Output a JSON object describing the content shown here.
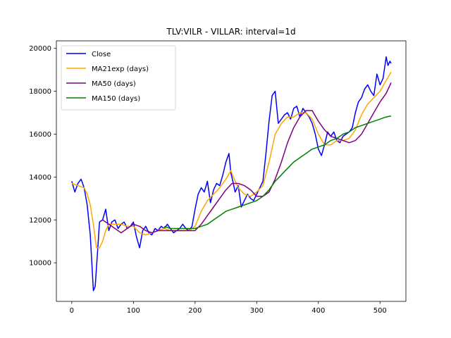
{
  "chart_data": {
    "type": "line",
    "title": "TLV:VILR - VILLAR: interval=1d",
    "xlabel": "",
    "ylabel": "",
    "xlim": [
      -25,
      542
    ],
    "ylim": [
      8200,
      20350
    ],
    "xticks": [
      0,
      100,
      200,
      300,
      400,
      500
    ],
    "yticks": [
      10000,
      12000,
      14000,
      16000,
      18000,
      20000
    ],
    "grid": false,
    "legend_position": "top-left",
    "series": [
      {
        "name": "Close",
        "color": "#0000ff",
        "x": [
          0,
          5,
          10,
          15,
          20,
          25,
          30,
          35,
          38,
          42,
          45,
          50,
          55,
          60,
          65,
          70,
          75,
          80,
          85,
          90,
          95,
          100,
          105,
          110,
          115,
          120,
          125,
          130,
          135,
          140,
          145,
          150,
          155,
          160,
          165,
          170,
          175,
          180,
          185,
          190,
          195,
          200,
          205,
          210,
          215,
          220,
          225,
          230,
          235,
          240,
          245,
          250,
          255,
          258,
          262,
          265,
          270,
          275,
          280,
          285,
          290,
          295,
          300,
          305,
          310,
          315,
          320,
          325,
          330,
          335,
          340,
          345,
          350,
          355,
          360,
          365,
          370,
          375,
          380,
          385,
          390,
          395,
          400,
          405,
          410,
          415,
          420,
          425,
          430,
          435,
          440,
          445,
          450,
          455,
          460,
          465,
          470,
          475,
          480,
          485,
          490,
          495,
          500,
          505,
          510,
          513,
          516,
          518
        ],
        "values": [
          13800,
          13300,
          13700,
          13900,
          13500,
          12700,
          11300,
          8700,
          8900,
          10600,
          11900,
          12000,
          12500,
          11500,
          11900,
          12000,
          11600,
          11800,
          11900,
          11600,
          11700,
          11900,
          11200,
          10700,
          11500,
          11700,
          11400,
          11300,
          11600,
          11500,
          11700,
          11600,
          11800,
          11600,
          11400,
          11500,
          11600,
          11800,
          11600,
          11500,
          11700,
          12500,
          13200,
          13500,
          13300,
          13800,
          12800,
          13400,
          13700,
          13600,
          14100,
          14700,
          15100,
          14200,
          13700,
          13300,
          13600,
          12600,
          12900,
          13200,
          13000,
          12900,
          13200,
          13500,
          13800,
          15100,
          16600,
          17800,
          18000,
          16500,
          16700,
          16900,
          17000,
          16700,
          17200,
          17300,
          16800,
          17200,
          17000,
          16800,
          16500,
          16000,
          15300,
          15000,
          15500,
          16100,
          15900,
          16100,
          15700,
          15600,
          15900,
          16000,
          16100,
          16300,
          17000,
          17500,
          17700,
          18100,
          18300,
          18000,
          17800,
          18800,
          18300,
          18600,
          19600,
          19200,
          19400,
          19300
        ]
      },
      {
        "name": "MA21exp (days)",
        "color": "#ffa500",
        "x": [
          0,
          10,
          20,
          25,
          30,
          35,
          40,
          45,
          50,
          55,
          60,
          70,
          80,
          90,
          100,
          110,
          120,
          130,
          140,
          150,
          160,
          170,
          180,
          190,
          200,
          210,
          220,
          230,
          240,
          250,
          258,
          262,
          270,
          280,
          290,
          300,
          310,
          320,
          330,
          340,
          350,
          360,
          370,
          380,
          390,
          400,
          410,
          420,
          430,
          440,
          450,
          460,
          470,
          480,
          490,
          500,
          510,
          518
        ],
        "values": [
          13700,
          13600,
          13500,
          13200,
          12700,
          11800,
          10700,
          10700,
          11000,
          11500,
          11800,
          11800,
          11800,
          11700,
          11700,
          11400,
          11300,
          11400,
          11500,
          11600,
          11500,
          11500,
          11500,
          11500,
          11700,
          12400,
          12900,
          13200,
          13500,
          13900,
          14300,
          14000,
          13500,
          13200,
          13100,
          13300,
          13600,
          14700,
          16000,
          16500,
          16800,
          16800,
          17000,
          17000,
          16700,
          16000,
          15500,
          15500,
          15700,
          15700,
          15800,
          16200,
          16900,
          17400,
          17700,
          18000,
          18500,
          18900
        ]
      },
      {
        "name": "MA50 (days)",
        "color": "#800080",
        "x": [
          50,
          60,
          70,
          80,
          90,
          100,
          110,
          120,
          130,
          140,
          150,
          160,
          170,
          180,
          190,
          200,
          210,
          220,
          230,
          240,
          250,
          260,
          270,
          280,
          290,
          300,
          310,
          320,
          330,
          340,
          350,
          360,
          370,
          380,
          390,
          400,
          410,
          420,
          430,
          440,
          450,
          460,
          470,
          480,
          490,
          500,
          510,
          518
        ],
        "values": [
          12000,
          11800,
          11600,
          11400,
          11600,
          11800,
          11700,
          11500,
          11400,
          11500,
          11500,
          11500,
          11500,
          11500,
          11500,
          11500,
          11800,
          12200,
          12600,
          13000,
          13400,
          13700,
          13700,
          13600,
          13400,
          13100,
          13100,
          13300,
          13900,
          14700,
          15600,
          16300,
          16800,
          17100,
          17100,
          16600,
          16200,
          15900,
          15800,
          15700,
          15600,
          15700,
          16000,
          16500,
          17000,
          17500,
          17900,
          18400
        ]
      },
      {
        "name": "MA150 (days)",
        "color": "#008000",
        "x": [
          150,
          160,
          170,
          180,
          190,
          200,
          210,
          220,
          230,
          240,
          250,
          260,
          270,
          280,
          290,
          300,
          310,
          320,
          330,
          340,
          350,
          360,
          370,
          380,
          390,
          400,
          410,
          420,
          430,
          440,
          450,
          460,
          470,
          480,
          490,
          500,
          510,
          518
        ],
        "values": [
          11700,
          11600,
          11600,
          11600,
          11600,
          11600,
          11700,
          11800,
          12000,
          12200,
          12400,
          12500,
          12600,
          12700,
          12800,
          12900,
          13100,
          13400,
          13800,
          14100,
          14400,
          14700,
          14900,
          15100,
          15300,
          15400,
          15500,
          15700,
          15800,
          16000,
          16100,
          16300,
          16400,
          16500,
          16600,
          16700,
          16800,
          16850
        ]
      }
    ]
  }
}
